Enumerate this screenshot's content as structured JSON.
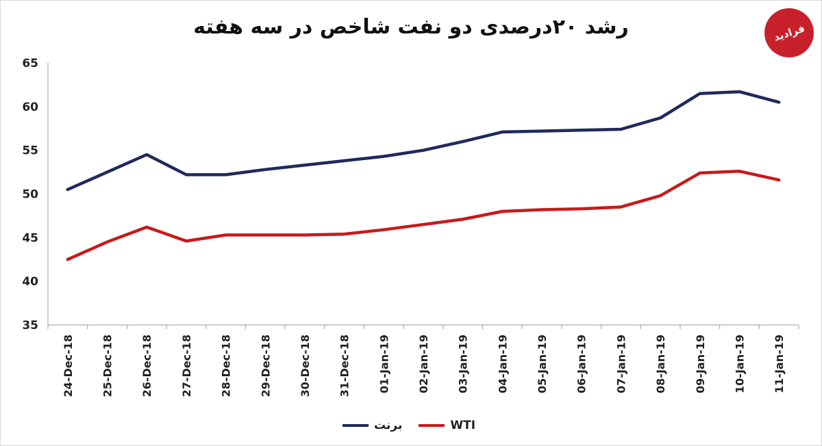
{
  "title": "رشد ۲۰درصدی دو نفت شاخص در سه هفته",
  "logo_text": "فرادید",
  "chart_data": {
    "type": "line",
    "title": "رشد ۲۰درصدی دو نفت شاخص در سه هفته",
    "categories": [
      "24-Dec-18",
      "25-Dec-18",
      "26-Dec-18",
      "27-Dec-18",
      "28-Dec-18",
      "29-Dec-18",
      "30-Dec-18",
      "31-Dec-18",
      "01-Jan-19",
      "02-Jan-19",
      "03-Jan-19",
      "04-Jan-19",
      "05-Jan-19",
      "06-Jan-19",
      "07-Jan-19",
      "08-Jan-19",
      "09-Jan-19",
      "10-Jan-19",
      "11-Jan-19"
    ],
    "series": [
      {
        "name": "برنت",
        "color": "#1f2a5c",
        "values": [
          50.5,
          52.5,
          54.5,
          52.2,
          52.2,
          52.8,
          53.3,
          53.8,
          54.3,
          55.0,
          56.0,
          57.1,
          57.2,
          57.3,
          57.4,
          58.7,
          61.5,
          61.7,
          60.5
        ]
      },
      {
        "name": "WTI",
        "color": "#c81a1a",
        "values": [
          42.5,
          44.5,
          46.2,
          44.6,
          45.3,
          45.3,
          45.3,
          45.4,
          45.9,
          46.5,
          47.1,
          48.0,
          48.2,
          48.3,
          48.5,
          49.8,
          52.4,
          52.6,
          51.6
        ]
      }
    ],
    "yticks": [
      35,
      40,
      45,
      50,
      55,
      60,
      65
    ],
    "ylim": [
      35,
      65
    ],
    "xlabel": "",
    "ylabel": "",
    "grid": false,
    "legend": "bottom"
  }
}
